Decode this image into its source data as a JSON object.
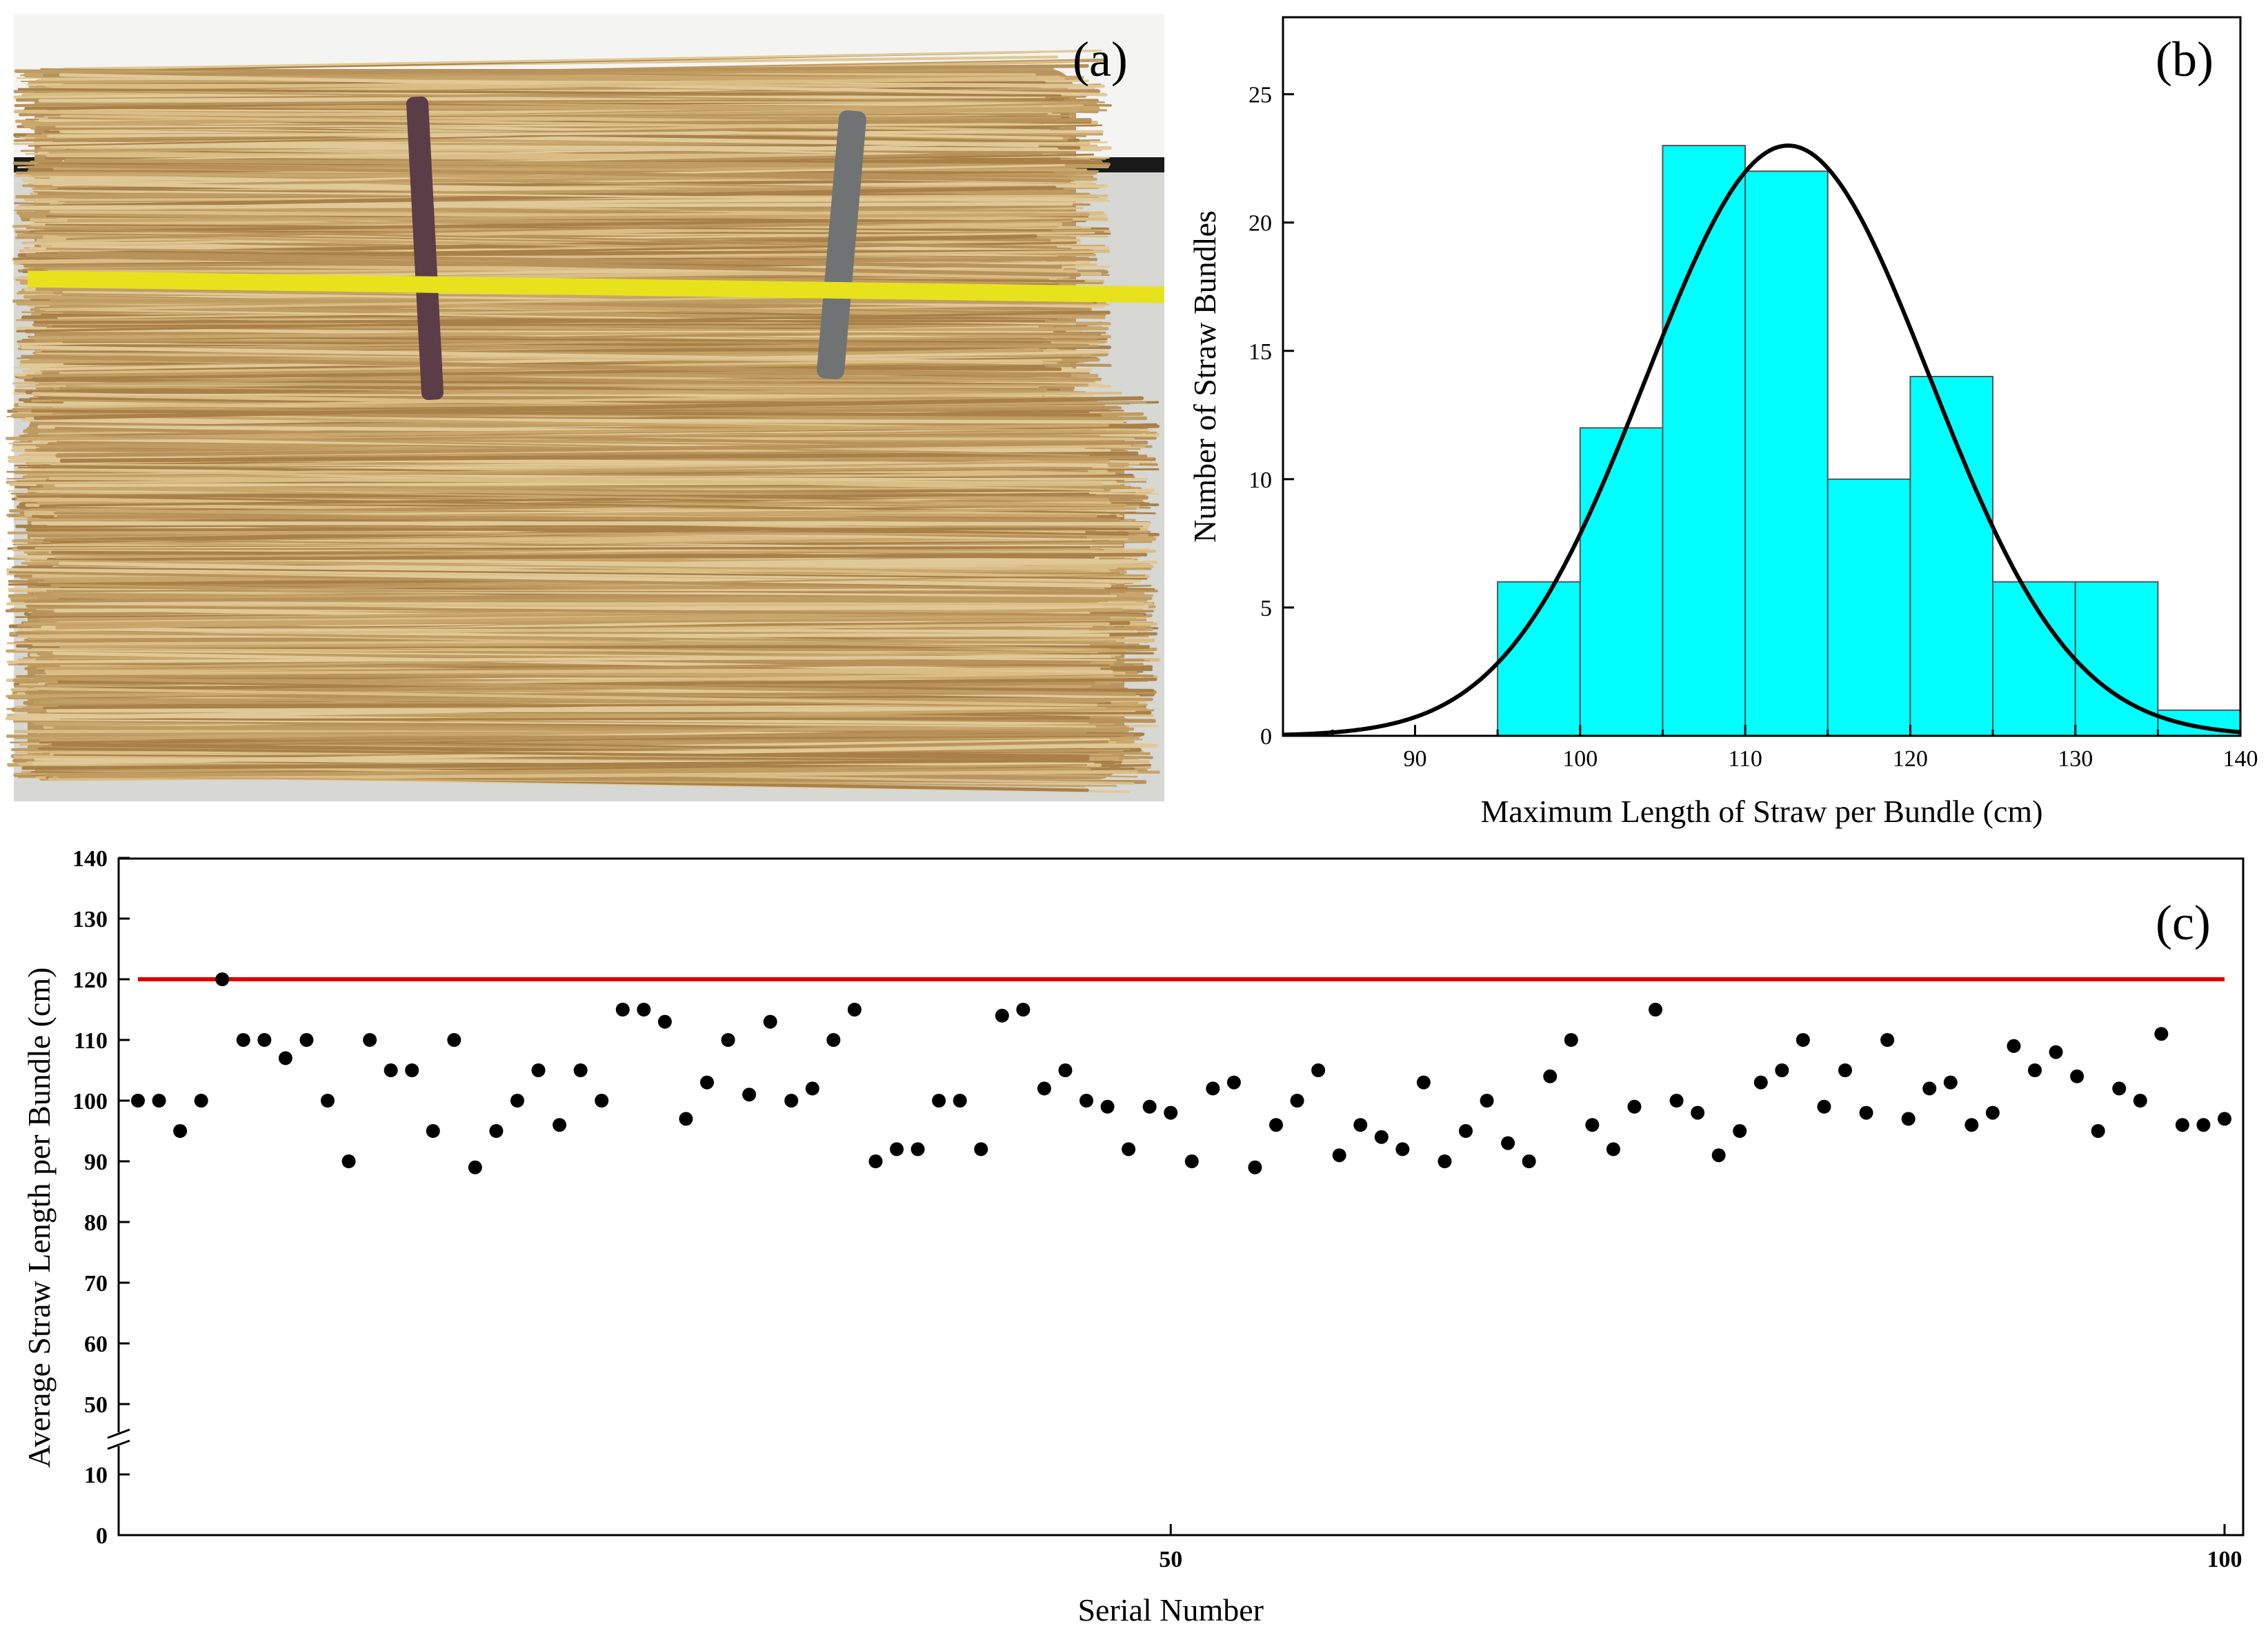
{
  "panels": {
    "a": "(a)",
    "b": "(b)",
    "c": "(c)"
  },
  "photo": {
    "icon": "straw-bundle-photo",
    "bg_wall": "#f4f4f2",
    "bg_floor": "#d7d7d3",
    "straw_color": "#c9a66b",
    "tape_color": "#e8e21c"
  },
  "chart_data": [
    {
      "type": "bar",
      "panel": "b",
      "title": "",
      "xlabel": "Maximum Length of Straw per Bundle (cm)",
      "ylabel": "Number of Straw Bundles",
      "xlim": [
        82,
        140
      ],
      "ylim": [
        0,
        28
      ],
      "xticks": [
        90,
        100,
        110,
        120,
        130,
        140
      ],
      "yticks": [
        0,
        5,
        10,
        15,
        20,
        25
      ],
      "bin_edges": [
        95,
        100,
        105,
        110,
        115,
        120,
        125,
        130,
        135,
        140
      ],
      "values": [
        6,
        12,
        23,
        22,
        10,
        14,
        6,
        6,
        1
      ],
      "bar_color": "#00ffff",
      "normal_fit": {
        "mean": 112.6,
        "sd": 8.6,
        "peak": 23
      },
      "grid": false
    },
    {
      "type": "scatter",
      "panel": "c",
      "title": "",
      "xlabel": "Serial Number",
      "ylabel": "Average Straw Length per Bundle (cm)",
      "xlim": [
        1,
        100
      ],
      "xticks": [
        50,
        100
      ],
      "yticks": [
        0,
        10,
        50,
        60,
        70,
        80,
        90,
        100,
        110,
        120,
        130,
        140
      ],
      "y_axis_break": [
        10,
        50
      ],
      "reference_line": {
        "y": 120,
        "color": "#e00000"
      },
      "x": [
        1,
        2,
        3,
        4,
        5,
        6,
        7,
        8,
        9,
        10,
        11,
        12,
        13,
        14,
        15,
        16,
        17,
        18,
        19,
        20,
        21,
        22,
        23,
        24,
        25,
        26,
        27,
        28,
        29,
        30,
        31,
        32,
        33,
        34,
        35,
        36,
        37,
        38,
        39,
        40,
        41,
        42,
        43,
        44,
        45,
        46,
        47,
        48,
        49,
        50,
        51,
        52,
        53,
        54,
        55,
        56,
        57,
        58,
        59,
        60,
        61,
        62,
        63,
        64,
        65,
        66,
        67,
        68,
        69,
        70,
        71,
        72,
        73,
        74,
        75,
        76,
        77,
        78,
        79,
        80,
        81,
        82,
        83,
        84,
        85,
        86,
        87,
        88,
        89,
        90,
        91,
        92,
        93,
        94,
        95,
        96,
        97,
        98,
        99,
        100
      ],
      "y": [
        100,
        100,
        95,
        100,
        120,
        110,
        110,
        107,
        110,
        100,
        90,
        110,
        105,
        105,
        95,
        110,
        89,
        95,
        100,
        105,
        96,
        105,
        100,
        115,
        115,
        113,
        97,
        103,
        110,
        101,
        113,
        100,
        102,
        110,
        115,
        90,
        92,
        92,
        100,
        100,
        92,
        114,
        115,
        102,
        105,
        100,
        99,
        92,
        99,
        98,
        90,
        102,
        103,
        89,
        96,
        100,
        105,
        91,
        96,
        94,
        92,
        103,
        90,
        95,
        100,
        93,
        90,
        104,
        110,
        96,
        92,
        99,
        115,
        100,
        98,
        91,
        95,
        103,
        105,
        110,
        99,
        105,
        98,
        110,
        97,
        102,
        103,
        96,
        98,
        109,
        105,
        108,
        104,
        95,
        102,
        100,
        111,
        96,
        96,
        97
      ],
      "marker_color": "#000000",
      "grid": false
    }
  ]
}
